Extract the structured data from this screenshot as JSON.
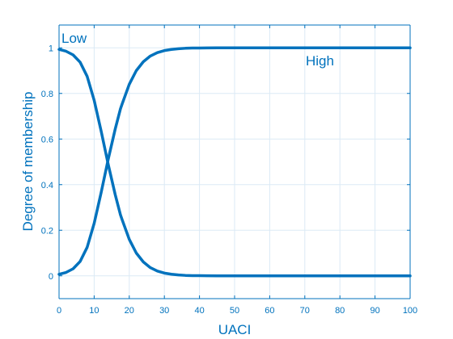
{
  "colors": {
    "axis": "#0072bd",
    "line": "#0072bd",
    "grid": "#dbeaf5",
    "background": "#ffffff"
  },
  "chart_data": {
    "type": "line",
    "title": "",
    "xlabel": "UACI",
    "ylabel": "Degree of membership",
    "xlim": [
      0,
      100
    ],
    "ylim": [
      -0.1,
      1.1
    ],
    "xticks": [
      0,
      10,
      20,
      30,
      40,
      50,
      60,
      70,
      80,
      90,
      100
    ],
    "yticks": [
      0,
      0.2,
      0.4,
      0.6,
      0.8,
      1
    ],
    "xtick_labels": [
      "0",
      "10",
      "20",
      "30",
      "40",
      "50",
      "60",
      "70",
      "80",
      "90",
      "100"
    ],
    "ytick_labels": [
      "0",
      "0.2",
      "0.4",
      "0.6",
      "0.8",
      "1"
    ],
    "grid": true,
    "series": [
      {
        "name": "Low",
        "x": [
          0,
          2,
          4,
          6,
          8,
          10,
          12,
          14,
          16,
          17.5,
          18,
          20,
          22,
          24,
          26,
          28,
          30,
          32,
          34,
          36,
          38,
          40,
          45,
          50,
          60,
          70,
          80,
          90,
          100
        ],
        "y": [
          0.993,
          0.985,
          0.969,
          0.937,
          0.875,
          0.77,
          0.634,
          0.489,
          0.356,
          0.267,
          0.245,
          0.16,
          0.1,
          0.061,
          0.036,
          0.021,
          0.012,
          0.007,
          0.004,
          0.002,
          0.001,
          0.001,
          0,
          0,
          0,
          0,
          0,
          0,
          0
        ]
      },
      {
        "name": "High",
        "x": [
          0,
          2,
          4,
          6,
          8,
          10,
          12,
          14,
          16,
          17.5,
          18,
          20,
          22,
          24,
          26,
          28,
          30,
          32,
          34,
          36,
          38,
          40,
          45,
          50,
          60,
          70,
          80,
          90,
          100
        ],
        "y": [
          0.007,
          0.015,
          0.031,
          0.063,
          0.125,
          0.23,
          0.366,
          0.511,
          0.644,
          0.733,
          0.755,
          0.84,
          0.9,
          0.939,
          0.964,
          0.979,
          0.988,
          0.993,
          0.996,
          0.998,
          0.999,
          0.999,
          1,
          1,
          1,
          1,
          1,
          1,
          1
        ]
      }
    ]
  }
}
